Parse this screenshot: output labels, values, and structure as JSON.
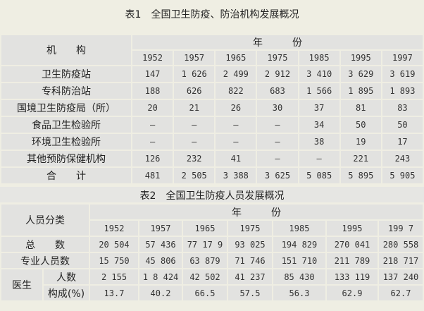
{
  "table1": {
    "title": "表1　全国卫生防疫、防治机构发展概况",
    "row_header": "机　　构",
    "year_header": "年　　　份",
    "years": [
      "1952",
      "1957",
      "1965",
      "1975",
      "1985",
      "1995",
      "1997"
    ],
    "rows": [
      {
        "label": "卫生防疫站",
        "values": [
          "147",
          "1 626",
          "2 499",
          "2 912",
          "3 410",
          "3 629",
          "3 619"
        ]
      },
      {
        "label": "专科防治站",
        "values": [
          "188",
          "626",
          "822",
          "683",
          "1 566",
          "1 895",
          "1 893"
        ]
      },
      {
        "label": "国境卫生防疫局（所）",
        "values": [
          "20",
          "21",
          "26",
          "30",
          "37",
          "81",
          "83"
        ]
      },
      {
        "label": "食品卫生检验所",
        "values": [
          "–",
          "–",
          "–",
          "–",
          "34",
          "50",
          "50"
        ]
      },
      {
        "label": "环境卫生检验所",
        "values": [
          "–",
          "–",
          "–",
          "–",
          "38",
          "19",
          "17"
        ]
      },
      {
        "label": "其他预防保健机构",
        "values": [
          "126",
          "232",
          "41",
          "–",
          "–",
          "221",
          "243"
        ]
      },
      {
        "label": "合　　计",
        "values": [
          "481",
          "2 505",
          "3 388",
          "3 625",
          "5 085",
          "5 895",
          "5 905"
        ]
      }
    ]
  },
  "table2": {
    "title": "表2　全国卫生防疫人员发展概况",
    "row_header": "人员分类",
    "year_header": "年　　　份",
    "years": [
      "1952",
      "1957",
      "1965",
      "1975",
      "1985",
      "1995",
      "199 7"
    ],
    "total": {
      "label": "总　　数",
      "values": [
        "20 504",
        "57 436",
        "77 17 9",
        "93 025",
        "194 829",
        "270 041",
        "280 558"
      ]
    },
    "professional": {
      "label": "专业人员数",
      "values": [
        "15 750",
        "45 806",
        "63 879",
        "71 746",
        "151 710",
        "211 789",
        "218 717"
      ]
    },
    "doctor": {
      "label": "医生",
      "count": {
        "label": "人数",
        "values": [
          "2 155",
          "1 8 424",
          "42 502",
          "41 237",
          "85 430",
          "133 119",
          "137 240"
        ]
      },
      "share": {
        "label": "构成(%)",
        "values": [
          "13.7",
          "40.2",
          "66.5",
          "57.5",
          "56.3",
          "62.9",
          "62.7"
        ]
      }
    }
  }
}
